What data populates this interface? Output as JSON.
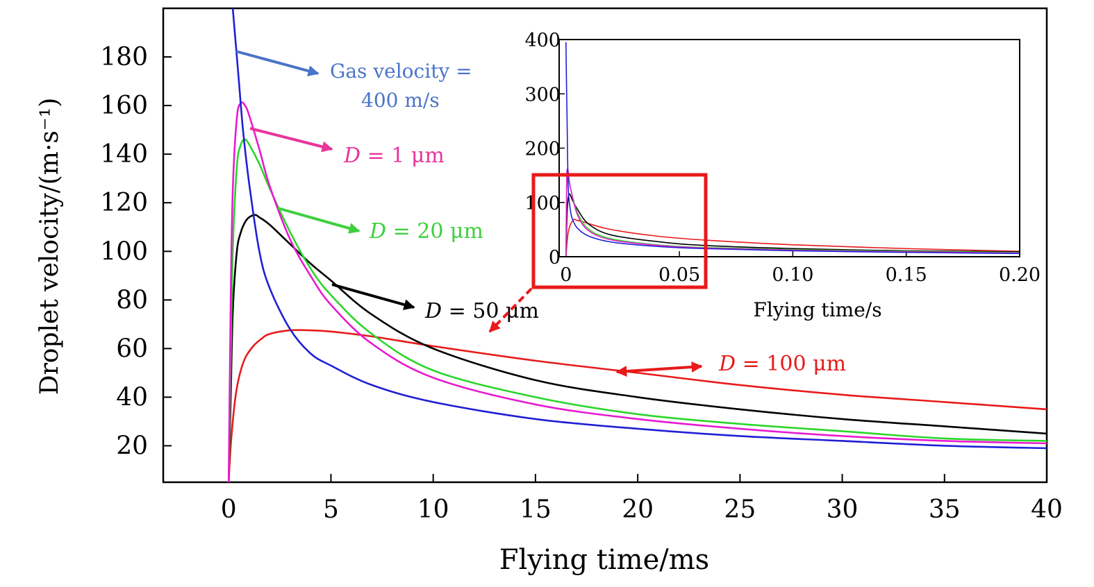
{
  "chart_data": [
    {
      "id": "main",
      "type": "line",
      "title": "",
      "xlabel": "Flying time/ms",
      "ylabel": "Droplet velocity/(m·s⁻¹)",
      "xlim": [
        -3.2,
        40
      ],
      "ylim": [
        5,
        200
      ],
      "xticks": [
        "0",
        "5",
        "10",
        "15",
        "20",
        "25",
        "30",
        "35",
        "40"
      ],
      "yticks": [
        "20",
        "40",
        "60",
        "80",
        "100",
        "120",
        "140",
        "160",
        "180"
      ],
      "series": [
        {
          "name": "Gas velocity = 400 m/s",
          "color": "#1f1fd6",
          "x": [
            0.2,
            0.3,
            0.4,
            0.5,
            0.7,
            1.0,
            1.5,
            2.0,
            3.0,
            4.0,
            5.0,
            7.0,
            10.0,
            15.0,
            20.0,
            25.0,
            30.0,
            35.0,
            40.0
          ],
          "y": [
            200,
            190,
            180,
            170,
            150,
            128,
            100,
            85,
            68,
            58,
            53,
            45,
            38,
            31,
            27,
            24,
            22,
            20,
            19
          ]
        },
        {
          "name": "D = 1 μm",
          "color": "#e81ad0",
          "x": [
            0,
            0.1,
            0.2,
            0.4,
            0.6,
            0.8,
            1.0,
            1.5,
            2.0,
            3.0,
            4.0,
            5.0,
            7.0,
            10.0,
            15.0,
            20.0,
            25.0,
            30.0,
            35.0,
            40.0
          ],
          "y": [
            5,
            80,
            125,
            155,
            161,
            160,
            156,
            142,
            127,
            105,
            90,
            78,
            62,
            48,
            37,
            31,
            27,
            24,
            22,
            21
          ]
        },
        {
          "name": "D = 20 μm",
          "color": "#2ad62a",
          "x": [
            0,
            0.1,
            0.2,
            0.4,
            0.6,
            0.8,
            1.0,
            1.5,
            2.0,
            3.0,
            4.0,
            5.0,
            7.0,
            10.0,
            15.0,
            20.0,
            25.0,
            30.0,
            35.0,
            40.0
          ],
          "y": [
            5,
            55,
            100,
            135,
            144,
            146,
            144,
            136,
            126,
            108,
            93,
            82,
            66,
            51,
            40,
            33,
            29,
            26,
            23,
            22
          ]
        },
        {
          "name": "D = 50 μm",
          "color": "#000000",
          "x": [
            0,
            0.1,
            0.2,
            0.4,
            0.6,
            0.8,
            1.0,
            1.3,
            1.5,
            2.0,
            3.0,
            4.0,
            5.0,
            7.0,
            10.0,
            15.0,
            20.0,
            25.0,
            30.0,
            35.0,
            40.0
          ],
          "y": [
            5,
            40,
            75,
            100,
            108,
            112,
            114,
            115,
            114,
            111,
            103,
            95,
            88,
            74,
            60,
            47,
            40,
            35,
            31,
            28,
            25
          ]
        },
        {
          "name": "D = 100 μm",
          "color": "#e81a1a",
          "x": [
            0,
            0.1,
            0.3,
            0.5,
            0.8,
            1.2,
            1.6,
            2.0,
            3.0,
            4.0,
            5.0,
            7.0,
            10.0,
            15.0,
            20.0,
            25.0,
            30.0,
            35.0,
            40.0
          ],
          "y": [
            5,
            20,
            38,
            48,
            56,
            61,
            64,
            66,
            67.5,
            67.5,
            67,
            65,
            61,
            55,
            50,
            45,
            41,
            38,
            35
          ]
        }
      ],
      "annotations": {
        "gas_line1": "Gas velocity =",
        "gas_line2": "400 m/s",
        "d1_prefix": "D",
        "d1_value": "= 1 μm",
        "d20_prefix": "D",
        "d20_value": "= 20 μm",
        "d50_prefix": "D",
        "d50_value": "= 50 μm",
        "d100_prefix": "D",
        "d100_value": "= 100 μm"
      }
    },
    {
      "id": "inset",
      "type": "line",
      "title": "",
      "xlabel": "Flying time/s",
      "ylabel": "",
      "xlim": [
        -0.003,
        0.2
      ],
      "ylim": [
        0,
        400
      ],
      "xticks": [
        "0",
        "0.05",
        "0.10",
        "0.15",
        "0.20"
      ],
      "yticks": [
        "0",
        "100",
        "200",
        "300",
        "400"
      ],
      "series": [
        {
          "color": "#1f1fd6",
          "x": [
            0,
            0.0002,
            0.0005,
            0.001,
            0.002,
            0.003,
            0.005,
            0.01,
            0.02,
            0.04,
            0.06,
            0.1,
            0.15,
            0.2
          ],
          "y": [
            395,
            330,
            250,
            128,
            85,
            68,
            53,
            38,
            27,
            19,
            15,
            11,
            8,
            6
          ]
        },
        {
          "color": "#e81ad0",
          "x": [
            0,
            0.0003,
            0.0006,
            0.001,
            0.002,
            0.005,
            0.01,
            0.02,
            0.04,
            0.06,
            0.1,
            0.15,
            0.2
          ],
          "y": [
            0,
            140,
            161,
            156,
            127,
            78,
            48,
            31,
            21,
            16,
            12,
            9,
            7
          ]
        },
        {
          "color": "#2ad62a",
          "x": [
            0,
            0.0003,
            0.0008,
            0.002,
            0.005,
            0.01,
            0.02,
            0.04,
            0.06,
            0.1,
            0.15,
            0.2
          ],
          "y": [
            0,
            120,
            146,
            126,
            82,
            51,
            33,
            22,
            17,
            13,
            10,
            8
          ]
        },
        {
          "color": "#000000",
          "x": [
            0,
            0.0005,
            0.0013,
            0.003,
            0.005,
            0.01,
            0.02,
            0.04,
            0.06,
            0.1,
            0.15,
            0.2
          ],
          "y": [
            0,
            80,
            115,
            103,
            88,
            60,
            40,
            28,
            21,
            15,
            11,
            9
          ]
        },
        {
          "color": "#e81a1a",
          "x": [
            0,
            0.001,
            0.003,
            0.005,
            0.01,
            0.02,
            0.04,
            0.06,
            0.1,
            0.15,
            0.2
          ],
          "y": [
            0,
            45,
            67,
            67,
            61,
            50,
            38,
            31,
            22,
            15,
            10
          ]
        }
      ]
    }
  ]
}
